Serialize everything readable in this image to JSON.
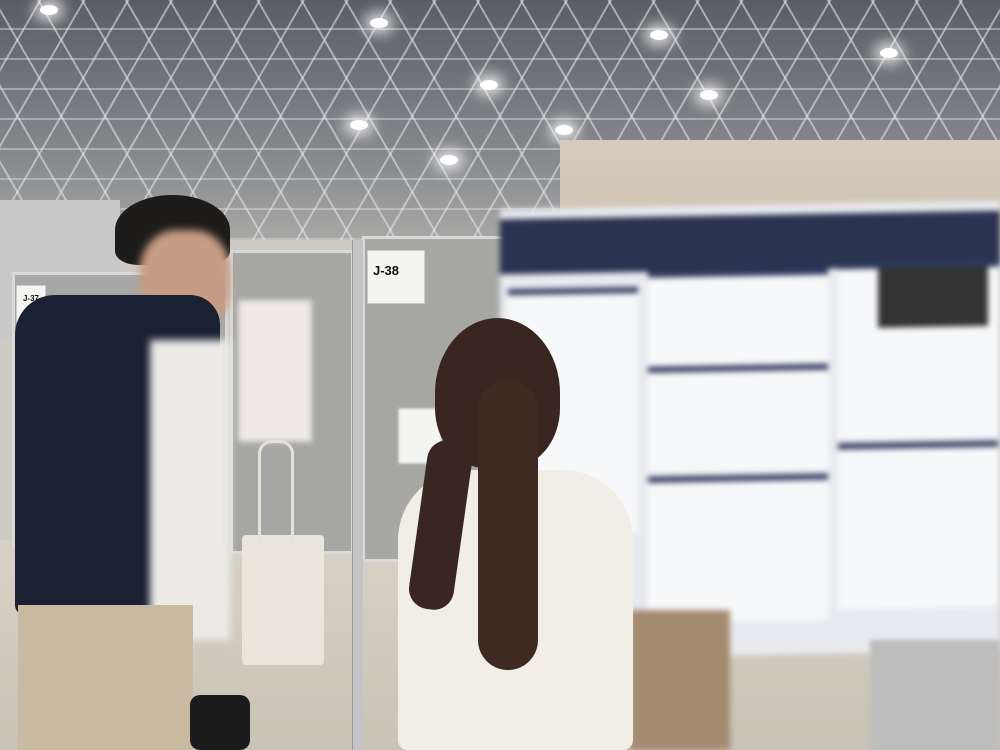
{
  "scene": {
    "signs": [
      {
        "label": "J-38"
      },
      {
        "label": "J-37"
      }
    ],
    "colors": {
      "panel": "#a7a7a5",
      "poster_header": "#2a3350",
      "shirt_dark": "#1a2132",
      "sweater": "#f1eee6"
    }
  }
}
